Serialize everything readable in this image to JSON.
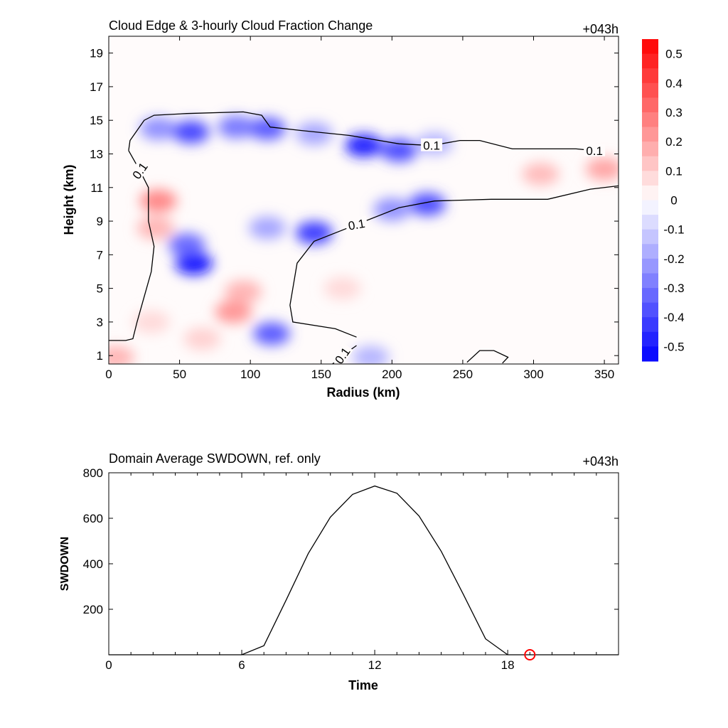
{
  "chart_data": [
    {
      "type": "heatmap",
      "title": "Cloud Edge & 3-hourly Cloud Fraction Change",
      "time_label": "+043h",
      "xlabel": "Radius (km)",
      "ylabel": "Height (km)",
      "xlim": [
        0,
        360
      ],
      "ylim": [
        0.5,
        20
      ],
      "xticks": [
        0,
        50,
        100,
        150,
        200,
        250,
        300,
        350
      ],
      "yticks": [
        1,
        3,
        5,
        7,
        9,
        11,
        13,
        15,
        17,
        19
      ],
      "colorbar": {
        "range": [
          -0.55,
          0.55
        ],
        "ticks": [
          "0.5",
          "0.4",
          "0.3",
          "0.2",
          "0.1",
          "0",
          "-0.1",
          "-0.2",
          "-0.3",
          "-0.4",
          "-0.5"
        ],
        "tick_values": [
          0.5,
          0.4,
          0.3,
          0.2,
          0.1,
          0,
          -0.1,
          -0.2,
          -0.3,
          -0.4,
          -0.5
        ],
        "negative_color": "#0000ff",
        "positive_color": "#ff0000"
      },
      "anomalies": [
        {
          "r": 60,
          "z": 6.5,
          "value": -0.33
        },
        {
          "r": 55,
          "z": 7.6,
          "value": -0.2
        },
        {
          "r": 35,
          "z": 14.5,
          "value": -0.15
        },
        {
          "r": 58,
          "z": 14.3,
          "value": -0.25
        },
        {
          "r": 90,
          "z": 14.6,
          "value": -0.18
        },
        {
          "r": 112,
          "z": 14.5,
          "value": -0.22
        },
        {
          "r": 145,
          "z": 14.2,
          "value": -0.12
        },
        {
          "r": 180,
          "z": 13.5,
          "value": -0.3
        },
        {
          "r": 205,
          "z": 13.2,
          "value": -0.24
        },
        {
          "r": 230,
          "z": 13.6,
          "value": -0.1
        },
        {
          "r": 145,
          "z": 8.3,
          "value": -0.26
        },
        {
          "r": 112,
          "z": 8.6,
          "value": -0.12
        },
        {
          "r": 225,
          "z": 10.0,
          "value": -0.24
        },
        {
          "r": 200,
          "z": 9.7,
          "value": -0.15
        },
        {
          "r": 115,
          "z": 2.3,
          "value": -0.22
        },
        {
          "r": 185,
          "z": 0.9,
          "value": -0.1
        },
        {
          "r": 35,
          "z": 10.2,
          "value": 0.16
        },
        {
          "r": 33,
          "z": 8.6,
          "value": 0.1
        },
        {
          "r": 88,
          "z": 3.6,
          "value": 0.14
        },
        {
          "r": 95,
          "z": 4.8,
          "value": 0.1
        },
        {
          "r": 5,
          "z": 0.9,
          "value": 0.1
        },
        {
          "r": 66,
          "z": 2.0,
          "value": 0.06
        },
        {
          "r": 305,
          "z": 11.8,
          "value": 0.09
        },
        {
          "r": 350,
          "z": 12.1,
          "value": 0.12
        },
        {
          "r": 30,
          "z": 3.0,
          "value": 0.05
        },
        {
          "r": 165,
          "z": 5.0,
          "value": 0.05
        }
      ],
      "contours": [
        {
          "level_label": "0.1",
          "points": [
            [
              14,
              13.2
            ],
            [
              15,
              13.8
            ],
            [
              25,
              15.0
            ],
            [
              32,
              15.3
            ],
            [
              55,
              15.4
            ],
            [
              95,
              15.5
            ],
            [
              108,
              15.3
            ],
            [
              114,
              14.6
            ],
            [
              135,
              14.4
            ],
            [
              170,
              14.1
            ],
            [
              205,
              13.6
            ],
            [
              228,
              13.5
            ],
            [
              248,
              13.8
            ],
            [
              262,
              13.8
            ],
            [
              285,
              13.3
            ],
            [
              330,
              13.3
            ],
            [
              343,
              13.2
            ]
          ]
        },
        {
          "level_label": "0.1",
          "points": [
            [
              14,
              13.2
            ],
            [
              22,
              12.0
            ],
            [
              28,
              11.0
            ],
            [
              28,
              9.0
            ],
            [
              32,
              7.5
            ],
            [
              30,
              6.0
            ],
            [
              25,
              4.5
            ],
            [
              20,
              3.0
            ],
            [
              17,
              2.0
            ],
            [
              12,
              1.9
            ],
            [
              0,
              1.9
            ]
          ]
        },
        {
          "level_label": "0.1",
          "points": [
            [
              175,
              2.1
            ],
            [
              160,
              2.6
            ],
            [
              130,
              3.0
            ],
            [
              128,
              4.0
            ],
            [
              133,
              6.5
            ],
            [
              145,
              7.8
            ],
            [
              175,
              8.8
            ],
            [
              205,
              9.8
            ],
            [
              230,
              10.2
            ],
            [
              270,
              10.3
            ],
            [
              310,
              10.3
            ],
            [
              340,
              10.9
            ],
            [
              360,
              11.1
            ]
          ]
        },
        {
          "level_label": "0.1",
          "points": [
            [
              175,
              1.6
            ],
            [
              165,
              1.0
            ],
            [
              158,
              0.5
            ]
          ]
        },
        {
          "level_label": "",
          "points": [
            [
              253,
              0.6
            ],
            [
              262,
              1.3
            ],
            [
              272,
              1.3
            ],
            [
              282,
              0.9
            ],
            [
              278,
              0.55
            ]
          ]
        }
      ]
    },
    {
      "type": "line",
      "title": "Domain Average SWDOWN, ref. only",
      "time_label": "+043h",
      "xlabel": "Time",
      "ylabel": "SWDOWN",
      "xlim": [
        0,
        23
      ],
      "ylim": [
        0,
        800
      ],
      "xticks": [
        0,
        6,
        12,
        18
      ],
      "yticks": [
        200,
        400,
        600,
        800
      ],
      "x": [
        0,
        1,
        2,
        3,
        4,
        5,
        6,
        7,
        8,
        9,
        10,
        11,
        12,
        13,
        14,
        15,
        16,
        17,
        18,
        19,
        20,
        21,
        22,
        23
      ],
      "values": [
        0,
        0,
        0,
        0,
        0,
        0,
        0,
        40,
        240,
        445,
        605,
        705,
        742,
        710,
        610,
        455,
        265,
        70,
        0,
        0,
        0,
        0,
        0,
        0
      ],
      "marker": {
        "x": 19,
        "y": 0,
        "color": "#ff0000"
      }
    }
  ]
}
